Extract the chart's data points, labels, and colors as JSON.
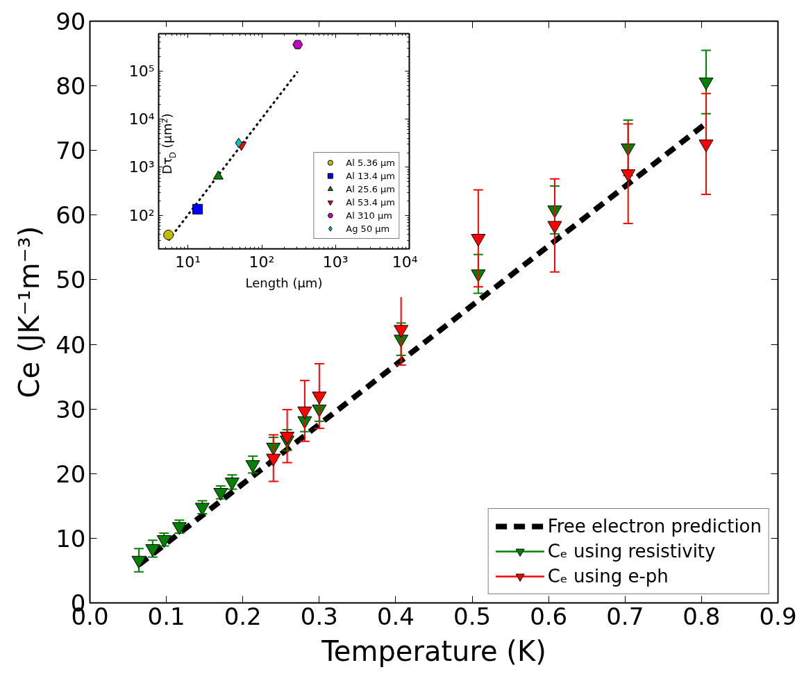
{
  "chart_data": [
    {
      "type": "scatter",
      "xlabel": "Temperature (K)",
      "ylabel": "Ce (JK⁻¹m⁻³)",
      "xlim": [
        0,
        0.9
      ],
      "xticks": [
        {
          "value": 0,
          "label": "0.0"
        },
        0.1,
        0.2,
        0.3,
        0.4,
        0.5,
        0.6,
        0.7,
        0.8,
        0.9
      ],
      "ylim": [
        0,
        90
      ],
      "yticks": [
        0,
        10,
        20,
        30,
        40,
        50,
        60,
        70,
        80,
        90
      ],
      "grid": false,
      "legend": "bottom right",
      "series": [
        {
          "name": "Free electron prediction",
          "type": "line",
          "color": "#000000",
          "line_style": "dashed",
          "marker": "none",
          "x": [
            0.064,
            0.806
          ],
          "values": [
            5.9,
            74.2
          ]
        },
        {
          "name": "Cₑ using resistivity",
          "type": "scatter",
          "color": "#008000",
          "marker": "triangle_down",
          "x": [
            0.064,
            0.082,
            0.097,
            0.117,
            0.147,
            0.171,
            0.186,
            0.213,
            0.24,
            0.258,
            0.281,
            0.3,
            0.407,
            0.508,
            0.608,
            0.704,
            0.806
          ],
          "values": [
            6.6,
            8.4,
            9.8,
            11.8,
            14.8,
            17.1,
            18.7,
            21.4,
            24.1,
            25.2,
            28.2,
            30.0,
            40.8,
            50.9,
            60.8,
            70.4,
            80.6
          ],
          "errors": [
            1.8,
            1.3,
            1,
            1,
            1,
            1,
            1.1,
            1.3,
            1.5,
            1.6,
            1.7,
            1.9,
            2.5,
            3,
            3.7,
            4.3,
            4.9
          ]
        },
        {
          "name": "Cₑ using e-ph",
          "type": "scatter",
          "color": "#ff0000",
          "marker": "triangle_down",
          "x": [
            0.24,
            0.258,
            0.281,
            0.3,
            0.407,
            0.508,
            0.608,
            0.704,
            0.806
          ],
          "values": [
            22.4,
            25.8,
            29.7,
            32.0,
            42.3,
            56.4,
            58.4,
            66.4,
            71.0
          ],
          "errors": [
            3.6,
            4.1,
            4.7,
            5,
            5.5,
            7.5,
            7.2,
            7.7,
            7.8
          ]
        }
      ]
    },
    {
      "type": "scatter",
      "xlabel": "Length (μm)",
      "ylabel": "Dτ$_{D}$ (μm²)",
      "log": "xy",
      "xlim": [
        4,
        10000
      ],
      "xticks": [
        {
          "value": 10,
          "label": "10¹"
        },
        {
          "value": 100,
          "label": "10²"
        },
        {
          "value": 1000,
          "label": "10³"
        },
        {
          "value": 10000,
          "label": "10⁴"
        }
      ],
      "ylim": [
        20,
        600000
      ],
      "yticks": [
        {
          "value": 100,
          "label": "10²"
        },
        {
          "value": 1000,
          "label": "10³"
        },
        {
          "value": 10000,
          "label": "10⁴"
        },
        {
          "value": 100000,
          "label": "10⁵"
        }
      ],
      "grid": false,
      "legend": "bottom right",
      "series": [
        {
          "type": "line",
          "color": "#000000",
          "line_style": "dotted",
          "marker": "none",
          "x": [
            5.43,
            307
          ],
          "values": [
            30,
            98000
          ]
        },
        {
          "name": "Al 5.36 μm",
          "color": "#bfbf00",
          "marker": "circle",
          "x": [
            5.43
          ],
          "values": [
            39
          ]
        },
        {
          "name": "Al 13.4 μm",
          "color": "#0000ff",
          "marker": "square",
          "x": [
            13.5
          ],
          "values": [
            134
          ]
        },
        {
          "name": "Al 25.6 μm",
          "color": "#008000",
          "marker": "triangle",
          "x": [
            25.7
          ],
          "values": [
            645
          ]
        },
        {
          "name": "Al 53.4 μm",
          "color": "#ff0000",
          "marker": "triangle_down",
          "x": [
            53
          ],
          "values": [
            2900
          ]
        },
        {
          "name": "Al 310 μm",
          "color": "#bf00bf",
          "x": [
            307
          ],
          "values": [
            356000
          ]
        },
        {
          "name": "Ag 50 μm",
          "color": "#00bfbf",
          "marker": "diamond",
          "x": [
            48.6
          ],
          "values": [
            3190
          ]
        }
      ]
    }
  ]
}
